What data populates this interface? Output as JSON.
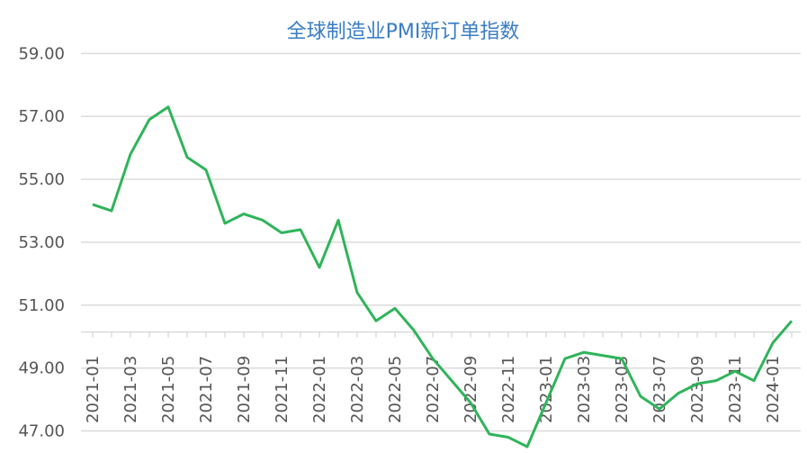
{
  "chart_data": {
    "type": "line",
    "title": "全球制造业PMI新订单指数",
    "categories": [
      "2021-01",
      null,
      "2021-03",
      null,
      "2021-05",
      null,
      "2021-07",
      null,
      "2021-09",
      null,
      "2021-11",
      null,
      "2022-01",
      null,
      "2022-03",
      null,
      "2022-05",
      null,
      "2022-07",
      null,
      "2022-09",
      null,
      "2022-11",
      null,
      "2023-01",
      null,
      "2023-03",
      null,
      "2023-05",
      null,
      "2023-07",
      null,
      "2023-09",
      null,
      "2023-11",
      null,
      "2024-01",
      null
    ],
    "series": [
      {
        "name": "全球制造业PMI新订单指数",
        "color": "#2fb45a",
        "values": [
          54.2,
          54.0,
          55.8,
          56.9,
          57.3,
          55.7,
          55.3,
          53.6,
          53.9,
          53.7,
          53.3,
          53.4,
          52.2,
          53.7,
          51.4,
          50.5,
          50.9,
          50.2,
          49.3,
          48.6,
          47.9,
          46.9,
          46.8,
          46.5,
          47.9,
          49.3,
          49.5,
          49.4,
          49.3,
          48.1,
          47.7,
          48.2,
          48.5,
          48.6,
          48.9,
          48.6,
          49.8,
          50.5
        ]
      }
    ],
    "ylim": [
      46.3,
      60.7
    ],
    "yticks": [
      {
        "value": 47,
        "label": "47.00"
      },
      {
        "value": 49,
        "label": "49.00"
      },
      {
        "value": 51,
        "label": "51.00"
      },
      {
        "value": 53,
        "label": "53.00"
      },
      {
        "value": 55,
        "label": "55.00"
      },
      {
        "value": 57,
        "label": "57.00"
      },
      {
        "value": 59,
        "label": "59.00"
      }
    ],
    "grid": true
  }
}
